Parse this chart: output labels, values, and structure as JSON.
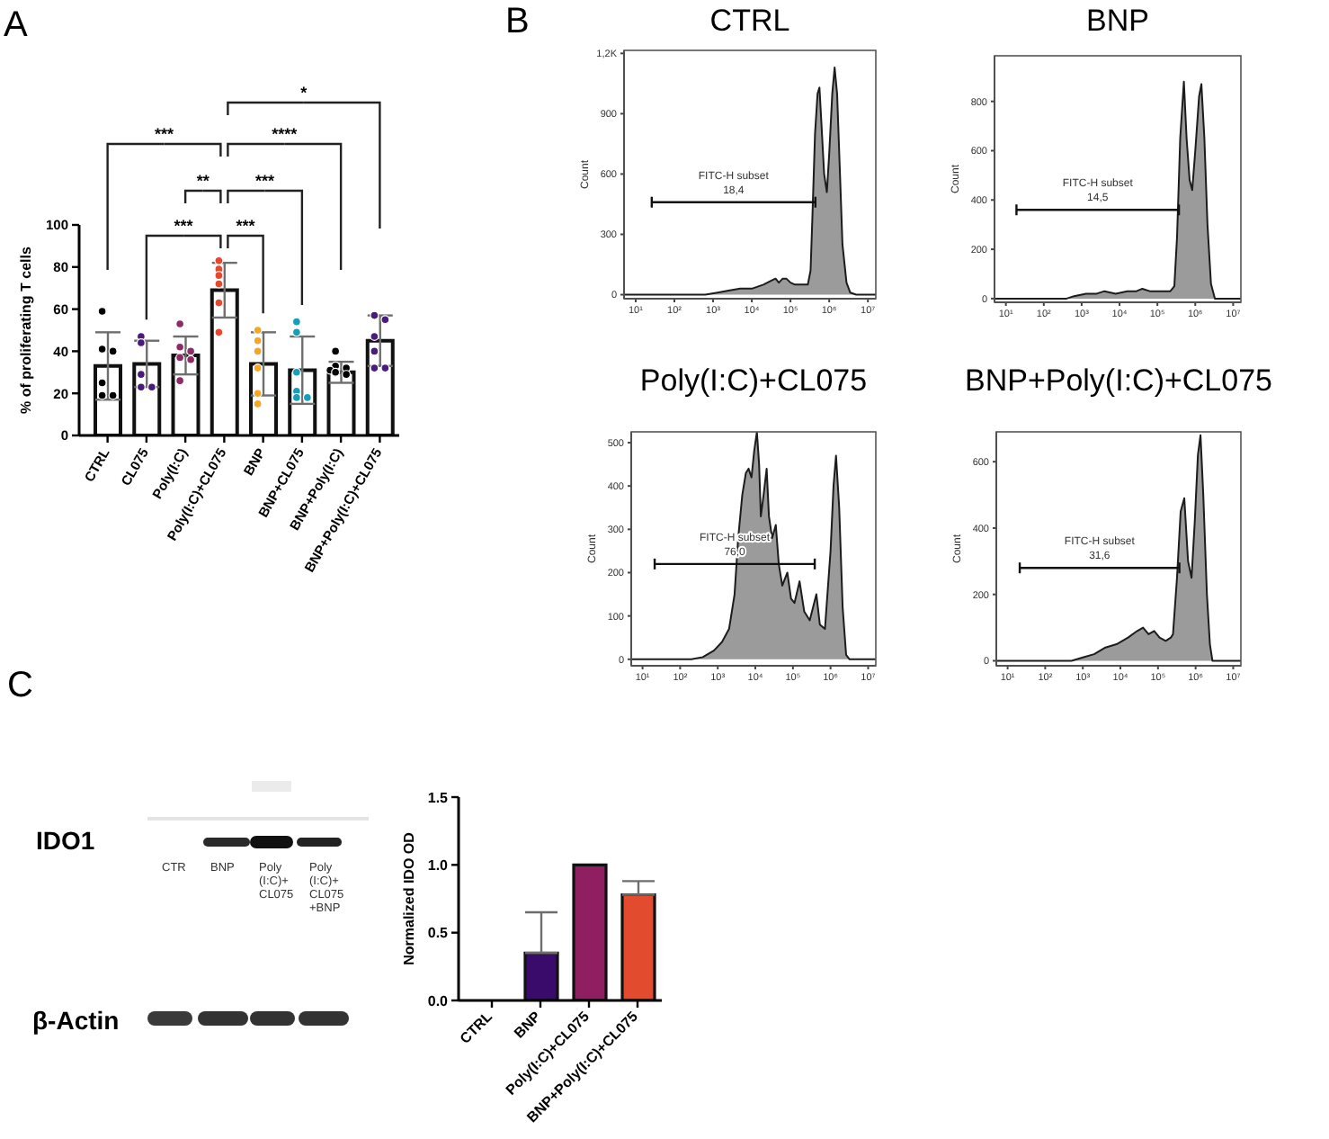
{
  "chart_data": [
    {
      "type": "bar",
      "categories": [
        "CTRL",
        "CL075",
        "Poly(I:C)",
        "Poly(I:C)+CL075",
        "BNP",
        "BNP+CL075",
        "BNP+Poly(I:C)",
        "BNP+Poly(I:C)+CL075"
      ],
      "series": [
        {
          "type": "bar",
          "color": "#ffffff",
          "values": [
            33,
            34,
            38,
            69,
            34,
            31,
            30,
            45
          ],
          "errors": [
            16,
            11,
            9,
            13,
            15,
            16,
            5,
            12
          ]
        },
        {
          "type": "scatter",
          "color": "#000000",
          "x": [
            "CTRL",
            "CTRL",
            "CTRL",
            "CTRL",
            "CTRL",
            "CTRL"
          ],
          "values": [
            59,
            41,
            40,
            25,
            19,
            19
          ]
        },
        {
          "type": "scatter",
          "color": "#4b1a7d",
          "x": [
            "CL075",
            "CL075",
            "CL075",
            "CL075",
            "CL075"
          ],
          "values": [
            47,
            44,
            29,
            23,
            23
          ]
        },
        {
          "type": "scatter",
          "color": "#8e2a68",
          "x": [
            "Poly(I:C)",
            "Poly(I:C)",
            "Poly(I:C)",
            "Poly(I:C)",
            "Poly(I:C)",
            "Poly(I:C)"
          ],
          "values": [
            53,
            42,
            40,
            37,
            36,
            26
          ]
        },
        {
          "type": "scatter",
          "color": "#e8472c",
          "x": [
            "Poly(I:C)+CL075",
            "Poly(I:C)+CL075",
            "Poly(I:C)+CL075",
            "Poly(I:C)+CL075",
            "Poly(I:C)+CL075",
            "Poly(I:C)+CL075"
          ],
          "values": [
            83,
            79,
            76,
            72,
            63,
            49
          ]
        },
        {
          "type": "scatter",
          "color": "#f5a623",
          "x": [
            "BNP",
            "BNP",
            "BNP",
            "BNP",
            "BNP",
            "BNP"
          ],
          "values": [
            50,
            45,
            40,
            32,
            20,
            15
          ]
        },
        {
          "type": "scatter",
          "color": "#1a9eb8",
          "x": [
            "BNP+CL075",
            "BNP+CL075",
            "BNP+CL075",
            "BNP+CL075",
            "BNP+CL075",
            "BNP+CL075"
          ],
          "values": [
            54,
            49,
            30,
            21,
            18,
            18
          ]
        },
        {
          "type": "scatter",
          "color": "#000000",
          "x": [
            "BNP+Poly(I:C)",
            "BNP+Poly(I:C)",
            "BNP+Poly(I:C)",
            "BNP+Poly(I:C)",
            "BNP+Poly(I:C)",
            "BNP+Poly(I:C)"
          ],
          "values": [
            40,
            33,
            32,
            31,
            30,
            29
          ]
        },
        {
          "type": "scatter",
          "color": "#4b1a7d",
          "x": [
            "BNP+Poly(I:C)+CL075",
            "BNP+Poly(I:C)+CL075",
            "BNP+Poly(I:C)+CL075",
            "BNP+Poly(I:C)+CL075",
            "BNP+Poly(I:C)+CL075",
            "BNP+Poly(I:C)+CL075"
          ],
          "values": [
            57,
            55,
            47,
            40,
            32,
            32
          ]
        }
      ],
      "ylabel": "% of proliferating T cells",
      "ylim": [
        0,
        100
      ],
      "yticks": [
        0,
        20,
        40,
        60,
        80,
        100
      ],
      "marker": "circle",
      "annotations": [
        "A",
        "*",
        "***",
        "****",
        "**",
        "***",
        "***",
        "***"
      ]
    },
    {
      "type": "area",
      "title": "CTRL",
      "ylabel": "Count",
      "log": "x",
      "series": [
        {
          "type": "area",
          "color": "#9b9b9b",
          "x": [
            5,
            320,
            630,
            1300,
            2500,
            5000,
            10000,
            20000,
            32000,
            41000,
            50000,
            63000,
            78000,
            100000,
            130000,
            200000,
            280000,
            330000,
            370000,
            430000,
            500000,
            560000,
            630000,
            740000,
            870000,
            1000000,
            1200000,
            1380000,
            1600000,
            1900000,
            2200000,
            2800000,
            3500000,
            5000000,
            16000000
          ],
          "values": [
            0,
            0,
            0,
            10,
            20,
            30,
            30,
            50,
            70,
            80,
            60,
            80,
            80,
            60,
            50,
            50,
            50,
            120,
            400,
            800,
            1000,
            1030,
            850,
            600,
            510,
            700,
            1000,
            1130,
            1000,
            600,
            250,
            60,
            10,
            0,
            0
          ]
        },
        {
          "type": "line",
          "name": "FITC-H subset",
          "color": "#111111",
          "x": [
            26,
            440000
          ],
          "values": [
            460,
            460
          ]
        }
      ],
      "xlim": [
        5,
        16000000
      ],
      "xticks": [
        {
          "value": 10,
          "label": "10¹"
        },
        {
          "value": 100,
          "label": "10²"
        },
        {
          "value": 1000,
          "label": "10³"
        },
        {
          "value": 10000,
          "label": "10⁴"
        },
        {
          "value": 100000,
          "label": "10⁵"
        },
        {
          "value": 1000000,
          "label": "10⁶"
        },
        {
          "value": 10000000,
          "label": "10⁷"
        }
      ],
      "ylim": [
        -20,
        1215
      ],
      "yticks": [
        0,
        300,
        600,
        900,
        {
          "value": 1200,
          "label": "1,2K"
        }
      ],
      "annotations": [
        "B",
        "18,4"
      ]
    },
    {
      "type": "area",
      "title": "BNP",
      "ylabel": "Count",
      "log": "x",
      "series": [
        {
          "type": "area",
          "color": "#9b9b9b",
          "x": [
            5,
            400,
            630,
            1300,
            2500,
            4000,
            7900,
            16000,
            28000,
            40000,
            63000,
            100000,
            160000,
            220000,
            280000,
            330000,
            400000,
            500000,
            590000,
            710000,
            830000,
            1000000,
            1260000,
            1450000,
            1740000,
            2100000,
            2600000,
            3300000,
            16000000
          ],
          "values": [
            0,
            0,
            10,
            20,
            20,
            30,
            20,
            30,
            30,
            40,
            30,
            30,
            30,
            30,
            50,
            250,
            650,
            880,
            650,
            480,
            440,
            600,
            820,
            870,
            650,
            300,
            60,
            0,
            0
          ]
        },
        {
          "type": "line",
          "name": "FITC-H subset",
          "color": "#111111",
          "x": [
            19,
            370000
          ],
          "values": [
            360,
            360
          ]
        }
      ],
      "xlim": [
        5,
        16000000
      ],
      "xticks": [
        {
          "value": 10,
          "label": "10¹"
        },
        {
          "value": 100,
          "label": "10²"
        },
        {
          "value": 1000,
          "label": "10³"
        },
        {
          "value": 10000,
          "label": "10⁴"
        },
        {
          "value": 100000,
          "label": "10⁵"
        },
        {
          "value": 1000000,
          "label": "10⁶"
        },
        {
          "value": 10000000,
          "label": "10⁷"
        }
      ],
      "ylim": [
        -15,
        985
      ],
      "yticks": [
        0,
        200,
        400,
        600,
        800
      ],
      "annotations": [
        "14,5"
      ]
    },
    {
      "type": "area",
      "title": "Poly(I:C)+CL075",
      "ylabel": "Count",
      "log": "x",
      "series": [
        {
          "type": "area",
          "color": "#9b9b9b",
          "x": [
            5,
            200,
            400,
            790,
            1300,
            2000,
            2800,
            3500,
            4500,
            5600,
            6600,
            7900,
            9300,
            11000,
            12600,
            14000,
            16600,
            20000,
            23000,
            28000,
            35000,
            42000,
            52000,
            71000,
            89000,
            110000,
            150000,
            200000,
            280000,
            420000,
            520000,
            710000,
            1000000,
            1200000,
            1400000,
            1700000,
            2100000,
            2600000,
            3200000,
            16000000
          ],
          "values": [
            0,
            0,
            5,
            20,
            40,
            70,
            150,
            280,
            380,
            430,
            440,
            420,
            480,
            525,
            450,
            330,
            380,
            440,
            330,
            280,
            310,
            220,
            170,
            200,
            140,
            130,
            180,
            110,
            90,
            150,
            80,
            70,
            250,
            400,
            470,
            350,
            120,
            10,
            0,
            0
          ]
        },
        {
          "type": "line",
          "name": "FITC-H subset",
          "color": "#111111",
          "x": [
            21,
            380000
          ],
          "values": [
            220,
            220
          ]
        }
      ],
      "xlim": [
        5,
        16000000
      ],
      "xticks": [
        {
          "value": 10,
          "label": "10¹"
        },
        {
          "value": 100,
          "label": "10²"
        },
        {
          "value": 1000,
          "label": "10³"
        },
        {
          "value": 10000,
          "label": "10⁴"
        },
        {
          "value": 100000,
          "label": "10⁵"
        },
        {
          "value": 1000000,
          "label": "10⁶"
        },
        {
          "value": 10000000,
          "label": "10⁷"
        }
      ],
      "ylim": [
        -15,
        525
      ],
      "yticks": [
        0,
        100,
        200,
        300,
        400,
        500
      ],
      "annotations": [
        "76,0"
      ]
    },
    {
      "type": "area",
      "title": "BNP+Poly(I:C)+CL075",
      "ylabel": "Count",
      "log": "x",
      "series": [
        {
          "type": "area",
          "color": "#9b9b9b",
          "x": [
            5,
            500,
            1000,
            2000,
            4000,
            7900,
            16000,
            28000,
            40000,
            56000,
            79000,
            110000,
            160000,
            220000,
            250000,
            320000,
            400000,
            500000,
            630000,
            780000,
            950000,
            1150000,
            1350000,
            1600000,
            2000000,
            2400000,
            2800000,
            16000000
          ],
          "values": [
            0,
            0,
            10,
            20,
            40,
            50,
            70,
            90,
            100,
            80,
            90,
            70,
            60,
            70,
            80,
            250,
            450,
            490,
            300,
            250,
            420,
            620,
            680,
            500,
            200,
            50,
            0,
            0
          ]
        },
        {
          "type": "line",
          "name": "FITC-H subset",
          "color": "#111111",
          "x": [
            21,
            370000
          ],
          "values": [
            280,
            280
          ]
        }
      ],
      "xlim": [
        5,
        16000000
      ],
      "xticks": [
        {
          "value": 10,
          "label": "10¹"
        },
        {
          "value": 100,
          "label": "10²"
        },
        {
          "value": 1000,
          "label": "10³"
        },
        {
          "value": 10000,
          "label": "10⁴"
        },
        {
          "value": 100000,
          "label": "10⁵"
        },
        {
          "value": 1000000,
          "label": "10⁶"
        },
        {
          "value": 10000000,
          "label": "10⁷"
        }
      ],
      "ylim": [
        -15,
        690
      ],
      "yticks": [
        0,
        200,
        400,
        600
      ],
      "annotations": [
        "31,6"
      ]
    },
    {
      "type": "other",
      "annotations": [
        "C",
        "IDO1",
        "β-Actin",
        "CTR",
        "BNP",
        "Poly (I:C)+ CL075",
        "Poly (I:C)+ CL075 +BNP"
      ]
    },
    {
      "type": "bar",
      "categories": [
        "CTRL",
        "BNP",
        "Poly(I:C)+CL075",
        "BNP+Poly(I:C)+CL075"
      ],
      "values": [
        0,
        0.35,
        1,
        0.78
      ],
      "colors": [
        "#000000",
        "#3b0b6b",
        "#8f1f60",
        "#e34b2f"
      ],
      "errors": [
        null,
        [
          0.35,
          0.65
        ],
        null,
        [
          0.78,
          0.88
        ]
      ],
      "ylabel": "Normalized IDO OD",
      "ylim": [
        0,
        1.5
      ],
      "yticks": [
        {
          "value": 0,
          "label": "0.0"
        },
        0.5,
        {
          "value": 1,
          "label": "1.0"
        },
        1.5
      ]
    }
  ]
}
